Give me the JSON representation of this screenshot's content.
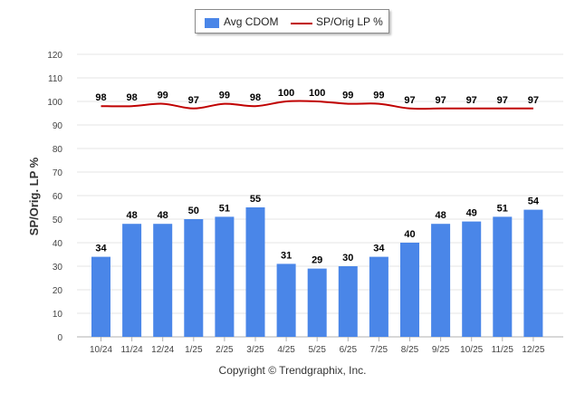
{
  "legend": {
    "bar_label": "Avg CDOM",
    "line_label": "SP/Orig LP %"
  },
  "copyright": "Copyright © Trendgraphix, Inc.",
  "colors": {
    "bar": "#4a86e8",
    "line": "#c00000",
    "grid": "#e6e6e6",
    "axis": "#b0b0b0"
  },
  "chart_data": {
    "type": "bar",
    "categories": [
      "10/24",
      "11/24",
      "12/24",
      "1/25",
      "2/25",
      "3/25",
      "4/25",
      "5/25",
      "6/25",
      "7/25",
      "8/25",
      "9/25",
      "10/25",
      "11/25",
      "12/25"
    ],
    "series": [
      {
        "name": "Avg CDOM",
        "type": "bar",
        "values": [
          34,
          48,
          48,
          50,
          51,
          55,
          31,
          29,
          30,
          34,
          40,
          48,
          49,
          51,
          54
        ]
      },
      {
        "name": "SP/Orig LP %",
        "type": "line",
        "values": [
          98,
          98,
          99,
          97,
          99,
          98,
          100,
          100,
          99,
          99,
          97,
          97,
          97,
          97,
          97
        ]
      }
    ],
    "ylabel": "SP/Orig. LP %",
    "ylim": [
      0,
      120
    ],
    "yticks": [
      0,
      10,
      20,
      30,
      40,
      50,
      60,
      70,
      80,
      90,
      100,
      110,
      120
    ],
    "grid": true,
    "legend_position": "top-center"
  }
}
